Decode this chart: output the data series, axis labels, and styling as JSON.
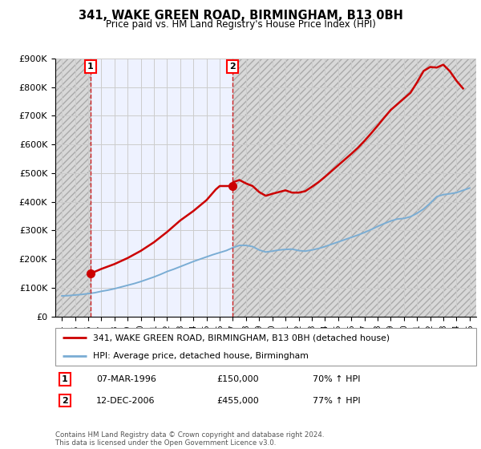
{
  "title": "341, WAKE GREEN ROAD, BIRMINGHAM, B13 0BH",
  "subtitle": "Price paid vs. HM Land Registry's House Price Index (HPI)",
  "legend_line1": "341, WAKE GREEN ROAD, BIRMINGHAM, B13 0BH (detached house)",
  "legend_line2": "HPI: Average price, detached house, Birmingham",
  "footer": "Contains HM Land Registry data © Crown copyright and database right 2024.\nThis data is licensed under the Open Government Licence v3.0.",
  "sale1_label": "1",
  "sale1_date": "07-MAR-1996",
  "sale1_price": "£150,000",
  "sale1_hpi": "70% ↑ HPI",
  "sale1_year": 1996.18,
  "sale1_value": 150000,
  "sale2_label": "2",
  "sale2_date": "12-DEC-2006",
  "sale2_price": "£455,000",
  "sale2_hpi": "77% ↑ HPI",
  "sale2_year": 2006.95,
  "sale2_value": 455000,
  "red_color": "#CC0000",
  "blue_color": "#7AADD4",
  "grid_color": "#CCCCCC",
  "bg_color": "#FFFFFF",
  "plot_bg": "#EEF2FF",
  "hatch_color": "#BBBBBB",
  "ylim_min": 0,
  "ylim_max": 900000,
  "xlim_min": 1993.5,
  "xlim_max": 2025.5,
  "ytick_values": [
    0,
    100000,
    200000,
    300000,
    400000,
    500000,
    600000,
    700000,
    800000,
    900000
  ],
  "ytick_labels": [
    "£0",
    "£100K",
    "£200K",
    "£300K",
    "£400K",
    "£500K",
    "£600K",
    "£700K",
    "£800K",
    "£900K"
  ],
  "xtick_years": [
    1994,
    1995,
    1996,
    1997,
    1998,
    1999,
    2000,
    2001,
    2002,
    2003,
    2004,
    2005,
    2006,
    2007,
    2008,
    2009,
    2010,
    2011,
    2012,
    2013,
    2014,
    2015,
    2016,
    2017,
    2018,
    2019,
    2020,
    2021,
    2022,
    2023,
    2024,
    2025
  ],
  "hpi_years": [
    1994,
    1994.5,
    1995,
    1995.5,
    1996,
    1996.5,
    1997,
    1997.5,
    1998,
    1998.5,
    1999,
    1999.5,
    2000,
    2000.5,
    2001,
    2001.5,
    2002,
    2002.5,
    2003,
    2003.5,
    2004,
    2004.5,
    2005,
    2005.5,
    2006,
    2006.5,
    2007,
    2007.5,
    2008,
    2008.5,
    2009,
    2009.5,
    2010,
    2010.5,
    2011,
    2011.5,
    2012,
    2012.5,
    2013,
    2013.5,
    2014,
    2014.5,
    2015,
    2015.5,
    2016,
    2016.5,
    2017,
    2017.5,
    2018,
    2018.5,
    2019,
    2019.5,
    2020,
    2020.5,
    2021,
    2021.5,
    2022,
    2022.5,
    2023,
    2023.5,
    2024,
    2024.5,
    2025
  ],
  "hpi_values": [
    72000,
    73000,
    75000,
    77000,
    80000,
    83000,
    88000,
    92000,
    97000,
    103000,
    109000,
    115000,
    122000,
    130000,
    138000,
    147000,
    157000,
    165000,
    174000,
    183000,
    192000,
    200000,
    208000,
    216000,
    223000,
    230000,
    240000,
    248000,
    248000,
    244000,
    232000,
    225000,
    228000,
    232000,
    234000,
    235000,
    230000,
    228000,
    232000,
    237000,
    244000,
    252000,
    260000,
    268000,
    276000,
    284000,
    293000,
    303000,
    314000,
    324000,
    333000,
    340000,
    342000,
    348000,
    360000,
    375000,
    395000,
    418000,
    425000,
    428000,
    432000,
    440000,
    448000
  ],
  "red_years": [
    1996.18,
    1997,
    1998,
    1999,
    2000,
    2001,
    2002,
    2003,
    2004,
    2005,
    2005.7,
    2006,
    2006.95,
    2007,
    2007.5,
    2008,
    2008.5,
    2009,
    2009.5,
    2010,
    2010.5,
    2011,
    2011.5,
    2012,
    2012.5,
    2013,
    2013.5,
    2014,
    2014.5,
    2015,
    2015.5,
    2016,
    2016.5,
    2017,
    2017.5,
    2018,
    2018.5,
    2019,
    2019.5,
    2020,
    2020.5,
    2021,
    2021.5,
    2022,
    2022.5,
    2023,
    2023.5,
    2024,
    2024.5
  ],
  "red_values": [
    150000,
    166000,
    183000,
    204000,
    229000,
    259000,
    295000,
    335000,
    368000,
    406000,
    443000,
    455000,
    455000,
    468000,
    476000,
    464000,
    455000,
    434000,
    421000,
    428000,
    434000,
    440000,
    432000,
    432000,
    437000,
    452000,
    468000,
    487000,
    507000,
    527000,
    547000,
    567000,
    588000,
    612000,
    638000,
    665000,
    693000,
    720000,
    740000,
    760000,
    780000,
    816000,
    856000,
    870000,
    868000,
    878000,
    855000,
    822000,
    795000
  ]
}
